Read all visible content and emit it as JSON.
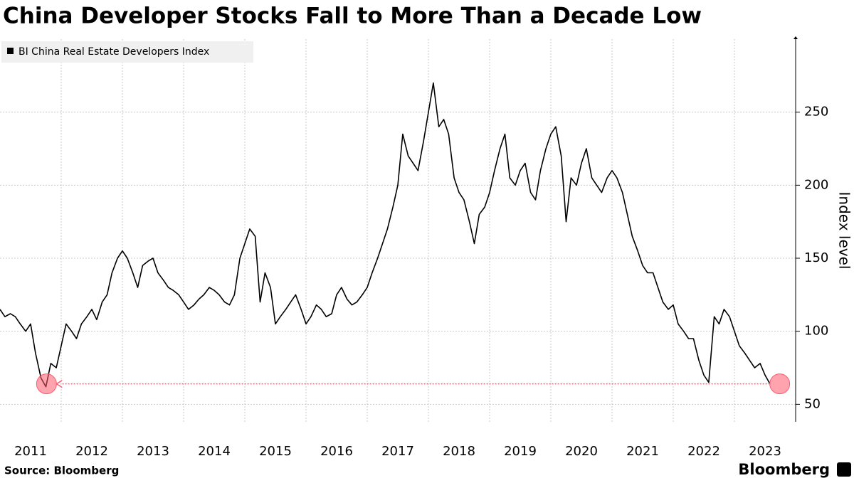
{
  "chart_data": {
    "type": "line",
    "title": "China Developer Stocks Fall to More Than a Decade Low",
    "series": [
      {
        "name": "BI China Real Estate Developers Index",
        "color": "#000000",
        "x": [
          2011,
          2011.08,
          2011.17,
          2011.25,
          2011.33,
          2011.42,
          2011.5,
          2011.58,
          2011.67,
          2011.75,
          2011.83,
          2011.92,
          2012,
          2012.08,
          2012.17,
          2012.25,
          2012.33,
          2012.42,
          2012.5,
          2012.58,
          2012.67,
          2012.75,
          2012.83,
          2012.92,
          2013,
          2013.08,
          2013.17,
          2013.25,
          2013.33,
          2013.42,
          2013.5,
          2013.58,
          2013.67,
          2013.75,
          2013.83,
          2013.92,
          2014,
          2014.08,
          2014.17,
          2014.25,
          2014.33,
          2014.42,
          2014.5,
          2014.58,
          2014.67,
          2014.75,
          2014.83,
          2014.92,
          2015,
          2015.08,
          2015.17,
          2015.25,
          2015.33,
          2015.42,
          2015.5,
          2015.58,
          2015.67,
          2015.75,
          2015.83,
          2015.92,
          2016,
          2016.08,
          2016.17,
          2016.25,
          2016.33,
          2016.42,
          2016.5,
          2016.58,
          2016.67,
          2016.75,
          2016.83,
          2016.92,
          2017,
          2017.08,
          2017.17,
          2017.25,
          2017.33,
          2017.42,
          2017.5,
          2017.58,
          2017.67,
          2017.75,
          2017.83,
          2017.92,
          2018,
          2018.08,
          2018.17,
          2018.25,
          2018.33,
          2018.42,
          2018.5,
          2018.58,
          2018.67,
          2018.75,
          2018.83,
          2018.92,
          2019,
          2019.08,
          2019.17,
          2019.25,
          2019.33,
          2019.42,
          2019.5,
          2019.58,
          2019.67,
          2019.75,
          2019.83,
          2019.92,
          2020,
          2020.08,
          2020.17,
          2020.25,
          2020.33,
          2020.42,
          2020.5,
          2020.58,
          2020.67,
          2020.75,
          2020.83,
          2020.92,
          2021,
          2021.08,
          2021.17,
          2021.25,
          2021.33,
          2021.42,
          2021.5,
          2021.58,
          2021.67,
          2021.75,
          2021.83,
          2021.92,
          2022,
          2022.08,
          2022.17,
          2022.25,
          2022.33,
          2022.42,
          2022.5,
          2022.58,
          2022.67,
          2022.75,
          2022.83,
          2022.92,
          2023,
          2023.08,
          2023.17,
          2023.25,
          2023.33,
          2023.42,
          2023.5,
          2023.58
        ],
        "values": [
          115,
          110,
          112,
          110,
          105,
          100,
          105,
          85,
          68,
          62,
          78,
          75,
          90,
          105,
          100,
          95,
          105,
          110,
          115,
          108,
          120,
          125,
          140,
          150,
          155,
          150,
          140,
          130,
          145,
          148,
          150,
          140,
          135,
          130,
          128,
          125,
          120,
          115,
          118,
          122,
          125,
          130,
          128,
          125,
          120,
          118,
          125,
          150,
          160,
          170,
          165,
          120,
          140,
          130,
          105,
          110,
          115,
          120,
          125,
          115,
          105,
          110,
          118,
          115,
          110,
          112,
          125,
          130,
          122,
          118,
          120,
          125,
          130,
          140,
          150,
          160,
          170,
          185,
          200,
          235,
          220,
          215,
          210,
          230,
          250,
          270,
          240,
          245,
          235,
          205,
          195,
          190,
          175,
          160,
          180,
          185,
          195,
          210,
          225,
          235,
          205,
          200,
          210,
          215,
          195,
          190,
          210,
          225,
          235,
          240,
          220,
          175,
          205,
          200,
          215,
          225,
          205,
          200,
          195,
          205,
          210,
          205,
          195,
          180,
          165,
          155,
          145,
          140,
          140,
          130,
          120,
          115,
          118,
          105,
          100,
          95,
          95,
          80,
          70,
          65,
          110,
          105,
          115,
          110,
          100,
          90,
          85,
          80,
          75,
          78,
          70,
          64
        ]
      }
    ],
    "highlights": [
      {
        "x": 2011.76,
        "y": 64
      },
      {
        "x": 2023.74,
        "y": 64
      }
    ],
    "highlight_color": "#ff5a6e",
    "xlim": [
      2011,
      2024
    ],
    "xticks": [
      2012,
      2013,
      2014,
      2015,
      2016,
      2017,
      2018,
      2019,
      2020,
      2021,
      2022,
      2023
    ],
    "x_labels": [
      2011,
      2012,
      2013,
      2014,
      2015,
      2016,
      2017,
      2018,
      2019,
      2020,
      2021,
      2022,
      2023
    ],
    "ylim": [
      38,
      300
    ],
    "yticks": [
      50,
      100,
      150,
      200,
      250
    ],
    "y_label": "Index level",
    "grid": true,
    "source": "Source: Bloomberg",
    "brand": "Bloomberg"
  }
}
